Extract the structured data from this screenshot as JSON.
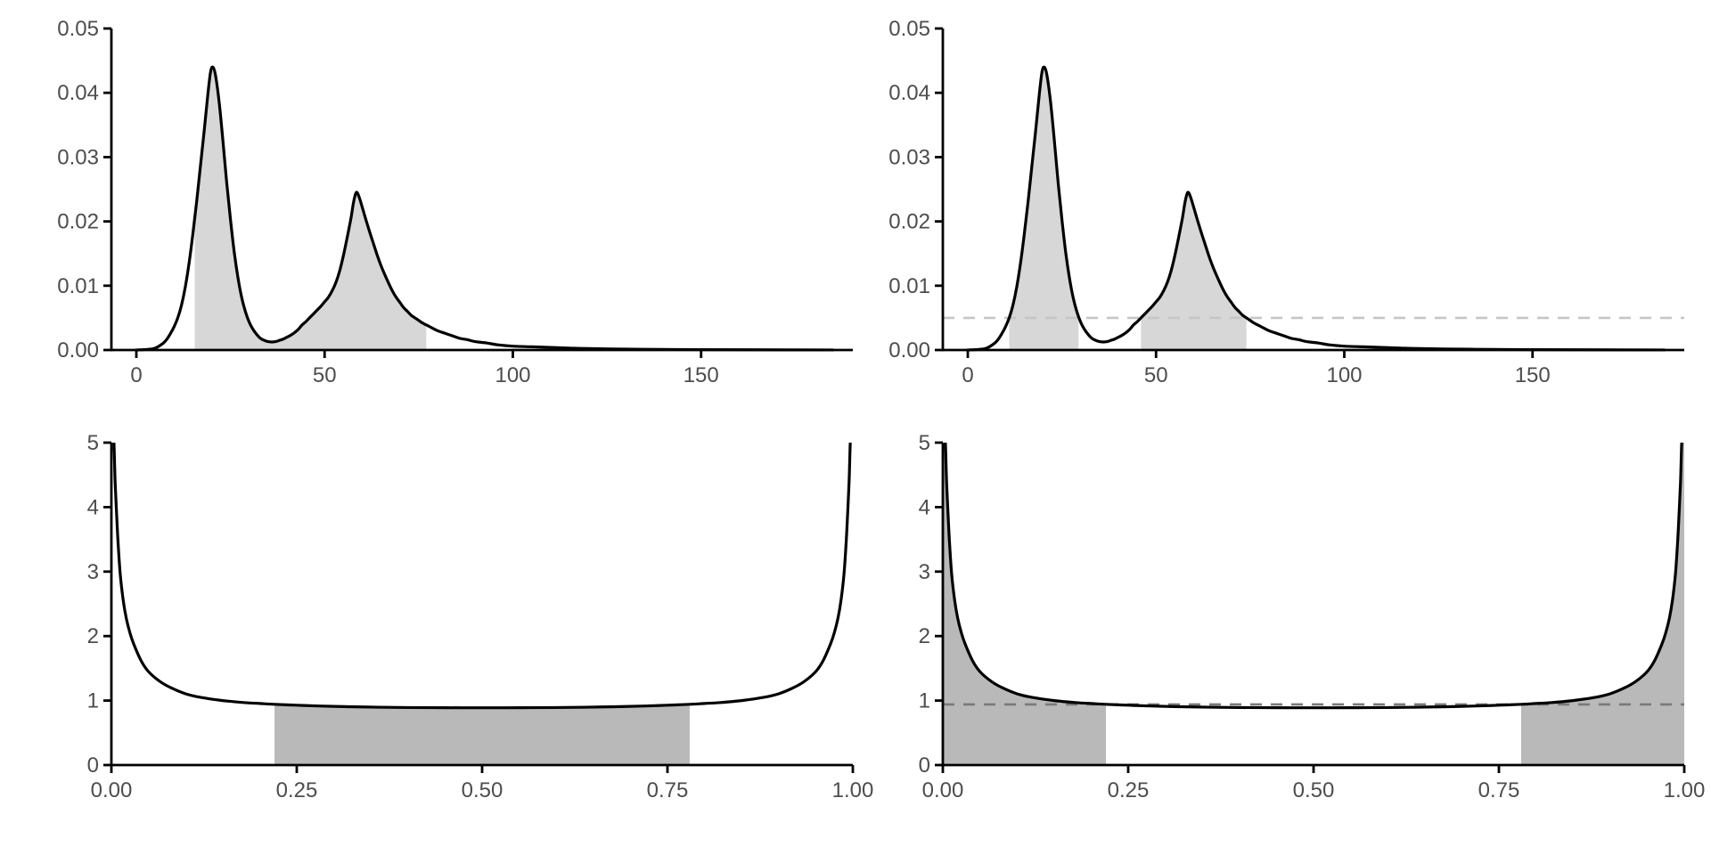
{
  "figure": {
    "background": "#ffffff"
  },
  "styles": {
    "curve_color": "#000000",
    "axis_color": "#000000",
    "tick_label_color": "#4d4d4d",
    "top_fill": "#d7d7d7",
    "bottom_fill": "#b9b9b9",
    "top_dash_color": "#c6c6c6",
    "bottom_dash_color": "#7a7a7a"
  },
  "chart_data": {
    "type": "area",
    "layout": "2x2 grid of density plots, no titles, no legends, classic theme with black axis lines and outside ticks",
    "curves": {
      "bimodal": [
        [
          0,
          0
        ],
        [
          3,
          0.0001
        ],
        [
          5,
          0.0003
        ],
        [
          7,
          0.001
        ],
        [
          8,
          0.0016
        ],
        [
          9,
          0.0025
        ],
        [
          10,
          0.0036
        ],
        [
          11,
          0.005
        ],
        [
          12,
          0.007
        ],
        [
          13,
          0.0098
        ],
        [
          14,
          0.0135
        ],
        [
          15,
          0.018
        ],
        [
          16,
          0.023
        ],
        [
          17,
          0.0285
        ],
        [
          18,
          0.034
        ],
        [
          19,
          0.0398
        ],
        [
          19.7,
          0.0432
        ],
        [
          20.3,
          0.044
        ],
        [
          21,
          0.0428
        ],
        [
          22,
          0.0385
        ],
        [
          23,
          0.0325
        ],
        [
          24,
          0.026
        ],
        [
          25,
          0.0203
        ],
        [
          26,
          0.0152
        ],
        [
          27,
          0.0112
        ],
        [
          28,
          0.0081
        ],
        [
          29,
          0.0059
        ],
        [
          30,
          0.0043
        ],
        [
          31,
          0.0032
        ],
        [
          32,
          0.0024
        ],
        [
          33,
          0.0018
        ],
        [
          34,
          0.0015
        ],
        [
          35,
          0.0013
        ],
        [
          36,
          0.00125
        ],
        [
          37,
          0.0013
        ],
        [
          38,
          0.0015
        ],
        [
          39,
          0.0017
        ],
        [
          40,
          0.002
        ],
        [
          41,
          0.0023
        ],
        [
          42,
          0.0027
        ],
        [
          43,
          0.0032
        ],
        [
          44,
          0.0039
        ],
        [
          45,
          0.0044
        ],
        [
          46,
          0.005
        ],
        [
          47,
          0.0056
        ],
        [
          48,
          0.0062
        ],
        [
          49,
          0.0068
        ],
        [
          50,
          0.0075
        ],
        [
          51,
          0.0082
        ],
        [
          52,
          0.0092
        ],
        [
          53,
          0.0105
        ],
        [
          54,
          0.0123
        ],
        [
          55,
          0.0147
        ],
        [
          56,
          0.0175
        ],
        [
          57,
          0.0205
        ],
        [
          57.7,
          0.023
        ],
        [
          58.4,
          0.0245
        ],
        [
          59.1,
          0.0239
        ],
        [
          60,
          0.0222
        ],
        [
          61,
          0.0202
        ],
        [
          62,
          0.0183
        ],
        [
          63,
          0.0165
        ],
        [
          64,
          0.0147
        ],
        [
          65,
          0.0131
        ],
        [
          66,
          0.0117
        ],
        [
          67,
          0.0104
        ],
        [
          68,
          0.0092
        ],
        [
          69,
          0.0082
        ],
        [
          70,
          0.0074
        ],
        [
          71,
          0.0066
        ],
        [
          72,
          0.006
        ],
        [
          73,
          0.0054
        ],
        [
          74,
          0.005
        ],
        [
          75,
          0.0046
        ],
        [
          76,
          0.0042
        ],
        [
          77,
          0.0039
        ],
        [
          78,
          0.0036
        ],
        [
          80,
          0.003
        ],
        [
          82,
          0.0026
        ],
        [
          84,
          0.0022
        ],
        [
          86,
          0.0018
        ],
        [
          88,
          0.0016
        ],
        [
          90,
          0.0013
        ],
        [
          93,
          0.0011
        ],
        [
          96,
          0.0008
        ],
        [
          100,
          0.0006
        ],
        [
          105,
          0.0005
        ],
        [
          110,
          0.0004
        ],
        [
          115,
          0.0003
        ],
        [
          120,
          0.00022
        ],
        [
          130,
          0.00014
        ],
        [
          140,
          9e-05
        ],
        [
          150,
          6e-05
        ],
        [
          165,
          3e-05
        ],
        [
          185,
          1e-05
        ]
      ],
      "u_shaped": [
        [
          0,
          5.1
        ],
        [
          0.003,
          5.1
        ],
        [
          0.005,
          4.4
        ],
        [
          0.007,
          3.9
        ],
        [
          0.009,
          3.45
        ],
        [
          0.012,
          2.95
        ],
        [
          0.016,
          2.55
        ],
        [
          0.02,
          2.28
        ],
        [
          0.025,
          2.05
        ],
        [
          0.03,
          1.88
        ],
        [
          0.04,
          1.62
        ],
        [
          0.05,
          1.45
        ],
        [
          0.065,
          1.3
        ],
        [
          0.08,
          1.2
        ],
        [
          0.1,
          1.105
        ],
        [
          0.12,
          1.05
        ],
        [
          0.15,
          1.0
        ],
        [
          0.18,
          0.968
        ],
        [
          0.2,
          0.955
        ],
        [
          0.22,
          0.942
        ],
        [
          0.25,
          0.928
        ],
        [
          0.28,
          0.916
        ],
        [
          0.32,
          0.905
        ],
        [
          0.36,
          0.897
        ],
        [
          0.4,
          0.892
        ],
        [
          0.45,
          0.889
        ],
        [
          0.5,
          0.888
        ],
        [
          0.55,
          0.889
        ],
        [
          0.6,
          0.892
        ],
        [
          0.64,
          0.897
        ],
        [
          0.68,
          0.905
        ],
        [
          0.72,
          0.916
        ],
        [
          0.75,
          0.928
        ],
        [
          0.78,
          0.942
        ],
        [
          0.8,
          0.955
        ],
        [
          0.82,
          0.968
        ],
        [
          0.85,
          1.0
        ],
        [
          0.88,
          1.05
        ],
        [
          0.9,
          1.105
        ],
        [
          0.92,
          1.2
        ],
        [
          0.935,
          1.3
        ],
        [
          0.95,
          1.45
        ],
        [
          0.96,
          1.62
        ],
        [
          0.97,
          1.88
        ],
        [
          0.975,
          2.05
        ],
        [
          0.98,
          2.28
        ],
        [
          0.984,
          2.55
        ],
        [
          0.988,
          2.95
        ],
        [
          0.991,
          3.45
        ],
        [
          0.993,
          3.9
        ],
        [
          0.995,
          4.4
        ],
        [
          0.997,
          5.1
        ],
        [
          1,
          5.1
        ]
      ]
    },
    "panels": [
      {
        "id": "top-left",
        "curve_ref": "bimodal",
        "x_range": [
          -6.63,
          190.3
        ],
        "y_range": [
          0,
          0.05
        ],
        "x_ticks": [
          {
            "v": 0,
            "label": "0"
          },
          {
            "v": 50,
            "label": "50"
          },
          {
            "v": 100,
            "label": "100"
          },
          {
            "v": 150,
            "label": "150"
          }
        ],
        "y_ticks": [
          {
            "v": 0,
            "label": "0.00"
          },
          {
            "v": 0.01,
            "label": "0.01"
          },
          {
            "v": 0.02,
            "label": "0.02"
          },
          {
            "v": 0.03,
            "label": "0.03"
          },
          {
            "v": 0.04,
            "label": "0.04"
          },
          {
            "v": 0.05,
            "label": "0.05"
          }
        ],
        "shaded_intervals": [
          [
            15.5,
            77
          ]
        ],
        "fill": "#d7d7d7",
        "dashed_hline": null
      },
      {
        "id": "top-right",
        "curve_ref": "bimodal",
        "x_range": [
          -6.63,
          190.3
        ],
        "y_range": [
          0,
          0.05
        ],
        "x_ticks": [
          {
            "v": 0,
            "label": "0"
          },
          {
            "v": 50,
            "label": "50"
          },
          {
            "v": 100,
            "label": "100"
          },
          {
            "v": 150,
            "label": "150"
          }
        ],
        "y_ticks": [
          {
            "v": 0,
            "label": "0.00"
          },
          {
            "v": 0.01,
            "label": "0.01"
          },
          {
            "v": 0.02,
            "label": "0.02"
          },
          {
            "v": 0.03,
            "label": "0.03"
          },
          {
            "v": 0.04,
            "label": "0.04"
          },
          {
            "v": 0.05,
            "label": "0.05"
          }
        ],
        "shaded_intervals": [
          [
            11,
            29.4
          ],
          [
            46,
            74
          ]
        ],
        "fill": "#d7d7d7",
        "dashed_hline": {
          "value": 0.005,
          "color": "#c6c6c6"
        }
      },
      {
        "id": "bottom-left",
        "curve_ref": "u_shaped",
        "x_range": [
          0,
          1
        ],
        "y_range": [
          0,
          5
        ],
        "x_ticks": [
          {
            "v": 0,
            "label": "0.00"
          },
          {
            "v": 0.25,
            "label": "0.25"
          },
          {
            "v": 0.5,
            "label": "0.50"
          },
          {
            "v": 0.75,
            "label": "0.75"
          },
          {
            "v": 1,
            "label": "1.00"
          }
        ],
        "y_ticks": [
          {
            "v": 0,
            "label": "0"
          },
          {
            "v": 1,
            "label": "1"
          },
          {
            "v": 2,
            "label": "2"
          },
          {
            "v": 3,
            "label": "3"
          },
          {
            "v": 4,
            "label": "4"
          },
          {
            "v": 5,
            "label": "5"
          }
        ],
        "shaded_intervals": [
          [
            0.22,
            0.78
          ]
        ],
        "fill": "#b9b9b9",
        "dashed_hline": null
      },
      {
        "id": "bottom-right",
        "curve_ref": "u_shaped",
        "x_range": [
          0,
          1
        ],
        "y_range": [
          0,
          5
        ],
        "x_ticks": [
          {
            "v": 0,
            "label": "0.00"
          },
          {
            "v": 0.25,
            "label": "0.25"
          },
          {
            "v": 0.5,
            "label": "0.50"
          },
          {
            "v": 0.75,
            "label": "0.75"
          },
          {
            "v": 1,
            "label": "1.00"
          }
        ],
        "y_ticks": [
          {
            "v": 0,
            "label": "0"
          },
          {
            "v": 1,
            "label": "1"
          },
          {
            "v": 2,
            "label": "2"
          },
          {
            "v": 3,
            "label": "3"
          },
          {
            "v": 4,
            "label": "4"
          },
          {
            "v": 5,
            "label": "5"
          }
        ],
        "shaded_intervals": [
          [
            0,
            0.22
          ],
          [
            0.78,
            1
          ]
        ],
        "fill": "#b9b9b9",
        "dashed_hline": {
          "value": 0.94,
          "color": "#7a7a7a"
        }
      }
    ]
  }
}
